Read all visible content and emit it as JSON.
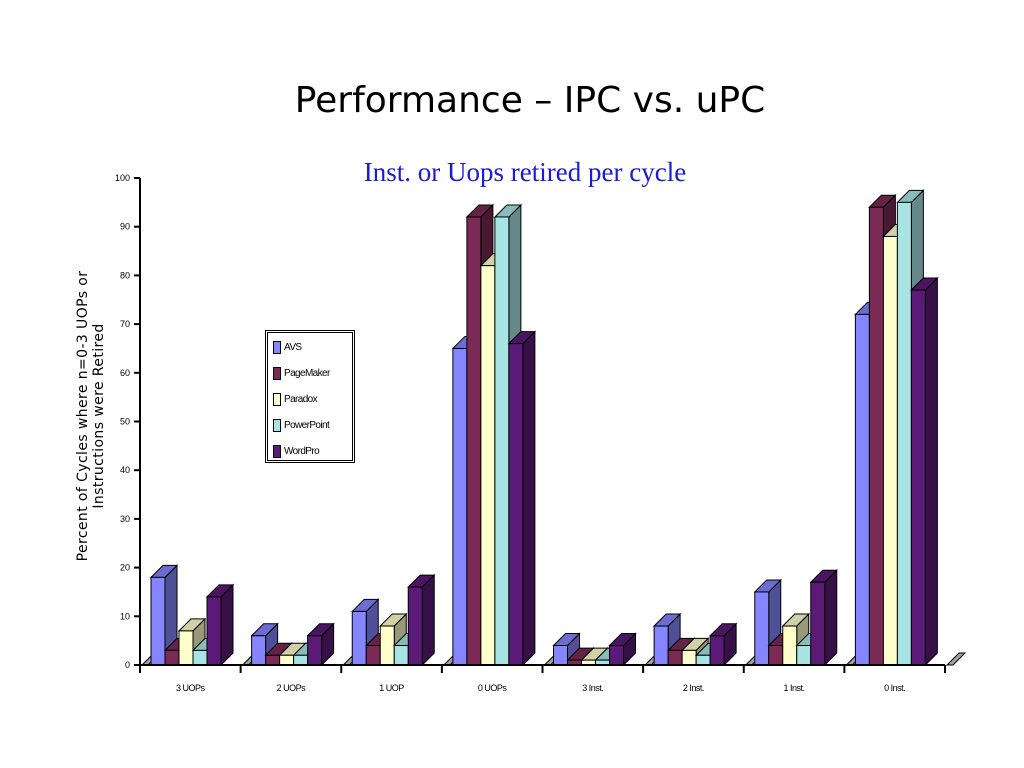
{
  "slide": {
    "title": "Performance – IPC vs. uPC"
  },
  "chart_data": {
    "type": "bar",
    "title": "Inst. or Uops retired per cycle",
    "ylabel": "Percent of Cycles where n=0-3 UOPs or Instructions were Retired",
    "ylabel_line1": "Percent of Cycles where n=0-3 UOPs or",
    "ylabel_line2": "Instructions were Retired",
    "ylim": [
      0,
      100
    ],
    "yticks": [
      0,
      10,
      20,
      30,
      40,
      50,
      60,
      70,
      80,
      90,
      100
    ],
    "categories": [
      "3 UOPs",
      "2 UOPs",
      "1 UOP",
      "0 UOPs",
      "3 Inst.",
      "2 Inst.",
      "1 Inst.",
      "0 Inst."
    ],
    "series": [
      {
        "name": "AVS",
        "color": "#8585ff",
        "values": [
          18,
          6,
          11,
          65,
          4,
          8,
          15,
          72
        ]
      },
      {
        "name": "PageMaker",
        "color": "#7a2a55",
        "values": [
          3,
          2,
          4,
          92,
          1,
          3,
          4,
          94
        ]
      },
      {
        "name": "Paradox",
        "color": "#ffffcc",
        "values": [
          7,
          2,
          8,
          82,
          1,
          3,
          8,
          88
        ]
      },
      {
        "name": "PowerPoint",
        "color": "#a8e4e4",
        "values": [
          3,
          2,
          4,
          92,
          1,
          2,
          4,
          95
        ]
      },
      {
        "name": "WordPro",
        "color": "#5c1a78",
        "values": [
          14,
          6,
          16,
          66,
          4,
          6,
          17,
          77
        ]
      }
    ],
    "grid": false,
    "legend": "left"
  }
}
